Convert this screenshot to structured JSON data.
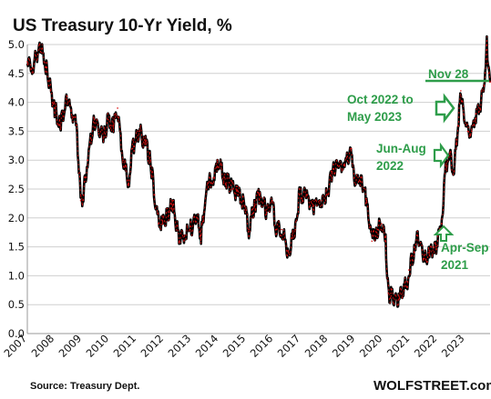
{
  "chart_data": {
    "type": "line",
    "title": "US Treasury 10-Yr Yield, %",
    "xlabel": "",
    "ylabel": "",
    "ylim": [
      0.0,
      5.0
    ],
    "yticks": [
      "0.0",
      "0.5",
      "1.0",
      "1.5",
      "2.0",
      "2.5",
      "3.0",
      "3.5",
      "4.0",
      "4.5",
      "5.0"
    ],
    "xlim": [
      2007.0,
      2023.92
    ],
    "xticks": [
      "2007",
      "2008",
      "2009",
      "2010",
      "2011",
      "2012",
      "2013",
      "2014",
      "2015",
      "2016",
      "2017",
      "2018",
      "2019",
      "2020",
      "2021",
      "2022",
      "2023"
    ],
    "grid": "horizontal",
    "series": [
      {
        "color": "#000000",
        "highlight_color": "#dd1111",
        "x": [
          2007.0,
          2007.2,
          2007.45,
          2007.7,
          2007.85,
          2008.0,
          2008.2,
          2008.45,
          2008.6,
          2008.8,
          2008.95,
          2009.05,
          2009.2,
          2009.45,
          2009.6,
          2009.8,
          2009.95,
          2010.15,
          2010.3,
          2010.5,
          2010.7,
          2010.85,
          2011.1,
          2011.3,
          2011.5,
          2011.65,
          2011.8,
          2011.95,
          2012.2,
          2012.3,
          2012.55,
          2012.75,
          2012.95,
          2013.2,
          2013.35,
          2013.6,
          2013.8,
          2013.95,
          2014.2,
          2014.5,
          2014.7,
          2014.95,
          2015.1,
          2015.3,
          2015.5,
          2015.75,
          2015.95,
          2016.1,
          2016.3,
          2016.55,
          2016.8,
          2016.95,
          2017.2,
          2017.45,
          2017.7,
          2017.95,
          2018.15,
          2018.4,
          2018.6,
          2018.85,
          2018.95,
          2019.2,
          2019.4,
          2019.6,
          2019.8,
          2019.95,
          2020.1,
          2020.2,
          2020.3,
          2020.6,
          2020.9,
          2020.95,
          2021.15,
          2021.25,
          2021.5,
          2021.7,
          2021.85,
          2021.95,
          2022.15,
          2022.3,
          2022.45,
          2022.6,
          2022.75,
          2022.85,
          2022.95,
          2023.1,
          2023.25,
          2023.4,
          2023.55,
          2023.7,
          2023.8,
          2023.87,
          2023.92
        ],
        "values": [
          4.7,
          4.6,
          5.0,
          4.6,
          4.2,
          3.9,
          3.6,
          4.1,
          3.85,
          3.6,
          2.3,
          2.4,
          3.0,
          3.7,
          3.5,
          3.4,
          3.7,
          3.6,
          3.9,
          3.0,
          2.6,
          3.2,
          3.5,
          3.3,
          3.0,
          2.4,
          1.9,
          1.9,
          2.1,
          2.3,
          1.6,
          1.7,
          1.8,
          2.0,
          1.7,
          2.6,
          2.7,
          3.0,
          2.7,
          2.5,
          2.4,
          2.2,
          1.8,
          2.2,
          2.4,
          2.1,
          2.3,
          1.8,
          1.8,
          1.4,
          1.8,
          2.4,
          2.4,
          2.2,
          2.3,
          2.4,
          2.8,
          2.9,
          2.9,
          3.2,
          2.7,
          2.7,
          2.3,
          1.6,
          1.8,
          1.9,
          1.6,
          0.7,
          0.65,
          0.6,
          0.9,
          1.1,
          1.4,
          1.7,
          1.3,
          1.4,
          1.5,
          1.5,
          1.9,
          2.9,
          3.1,
          2.8,
          3.6,
          4.2,
          3.8,
          3.5,
          3.5,
          3.8,
          3.9,
          4.3,
          5.0,
          4.5,
          4.35
        ]
      }
    ],
    "annotations": [
      {
        "lines": [
          "Nov 28"
        ],
        "target": [
          2023.92,
          4.35
        ]
      },
      {
        "lines": [
          "Oct 2022 to",
          "May 2023"
        ],
        "target": [
          2023.05,
          3.9
        ]
      },
      {
        "lines": [
          "Jun-Aug",
          "2022"
        ],
        "target": [
          2022.55,
          3.05
        ]
      },
      {
        "lines": [
          "Apr-Sep",
          "2021"
        ],
        "target": [
          2021.4,
          1.5
        ]
      }
    ],
    "source": "Source: Treasury Dept.",
    "brand": "WOLFSTREET.com"
  }
}
